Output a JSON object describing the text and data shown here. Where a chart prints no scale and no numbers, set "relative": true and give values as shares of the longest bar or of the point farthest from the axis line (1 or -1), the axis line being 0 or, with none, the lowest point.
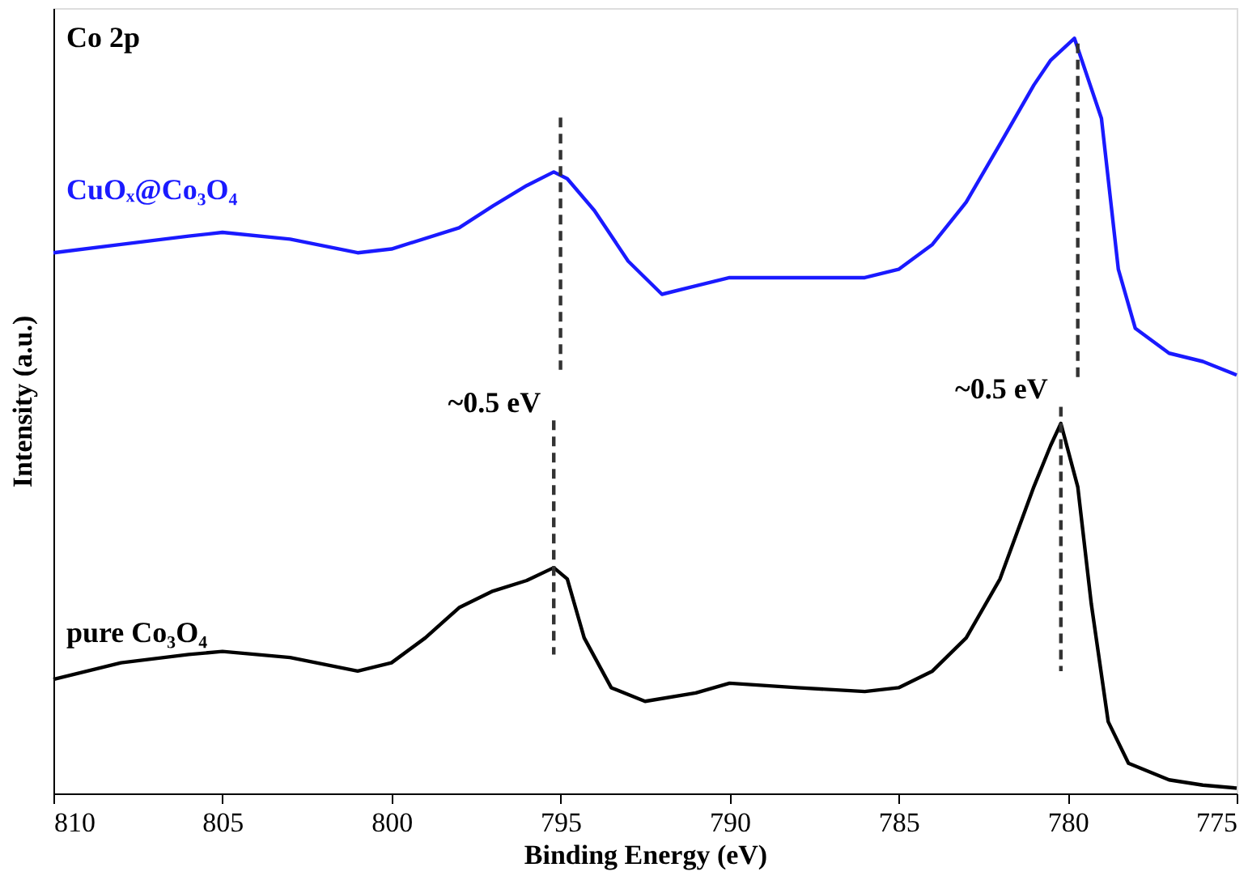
{
  "chart_data": {
    "type": "line",
    "relative": true,
    "xlabel": "Binding Energy (eV)",
    "ylabel": "Intensity (a.u.)",
    "xlim": [
      810,
      775
    ],
    "xticks": [
      810,
      805,
      800,
      795,
      790,
      785,
      780,
      775
    ],
    "grid": false,
    "legend": false,
    "annotations": [
      "Co 2p",
      "~0.5 eV",
      "~0.5 eV"
    ],
    "series": [
      {
        "name": "CuOₓ@Co₃O₄",
        "color": "#1a1aff",
        "x": [
          810,
          808,
          806,
          805,
          803,
          801,
          800,
          798,
          797,
          796,
          795.2,
          794.8,
          794,
          793,
          792,
          791,
          790,
          788,
          786,
          785,
          784,
          783,
          782,
          781,
          780.5,
          779.8,
          779,
          778.5,
          778,
          777,
          776,
          775
        ],
        "values": [
          0.716,
          0.727,
          0.738,
          0.743,
          0.734,
          0.716,
          0.721,
          0.749,
          0.778,
          0.805,
          0.823,
          0.814,
          0.772,
          0.705,
          0.661,
          0.672,
          0.683,
          0.683,
          0.683,
          0.694,
          0.727,
          0.783,
          0.86,
          0.938,
          0.971,
          1,
          0.894,
          0.694,
          0.616,
          0.583,
          0.572,
          0.554
        ]
      },
      {
        "name": "pure Co₃O₄",
        "color": "#000000",
        "x": [
          810,
          808,
          806,
          805,
          803,
          801,
          800,
          799,
          798,
          797,
          796,
          795.2,
          794.8,
          794.3,
          793.5,
          792.5,
          791,
          790,
          788,
          786,
          785,
          784,
          783,
          782,
          781,
          780.5,
          780.2,
          779.7,
          779.3,
          778.8,
          778.2,
          777,
          776,
          775
        ],
        "values": [
          0.151,
          0.173,
          0.184,
          0.188,
          0.18,
          0.162,
          0.173,
          0.206,
          0.246,
          0.268,
          0.282,
          0.299,
          0.284,
          0.206,
          0.14,
          0.122,
          0.133,
          0.146,
          0.14,
          0.135,
          0.14,
          0.162,
          0.206,
          0.284,
          0.406,
          0.461,
          0.49,
          0.406,
          0.251,
          0.095,
          0.04,
          0.018,
          0.011,
          0.007
        ]
      },
      {
        "color": "#333333",
        "line_style": "dashed",
        "x": [
          795,
          795
        ],
        "values": [
          0.895,
          0.561
        ]
      },
      {
        "color": "#333333",
        "line_style": "dashed",
        "x": [
          779.7,
          779.7
        ],
        "values": [
          0.993,
          0.55
        ]
      },
      {
        "color": "#333333",
        "line_style": "dashed",
        "x": [
          795.2,
          795.2
        ],
        "values": [
          0.494,
          0.184
        ]
      },
      {
        "color": "#333333",
        "line_style": "dashed",
        "x": [
          780.2,
          780.2
        ],
        "values": [
          0.512,
          0.162
        ]
      }
    ]
  }
}
